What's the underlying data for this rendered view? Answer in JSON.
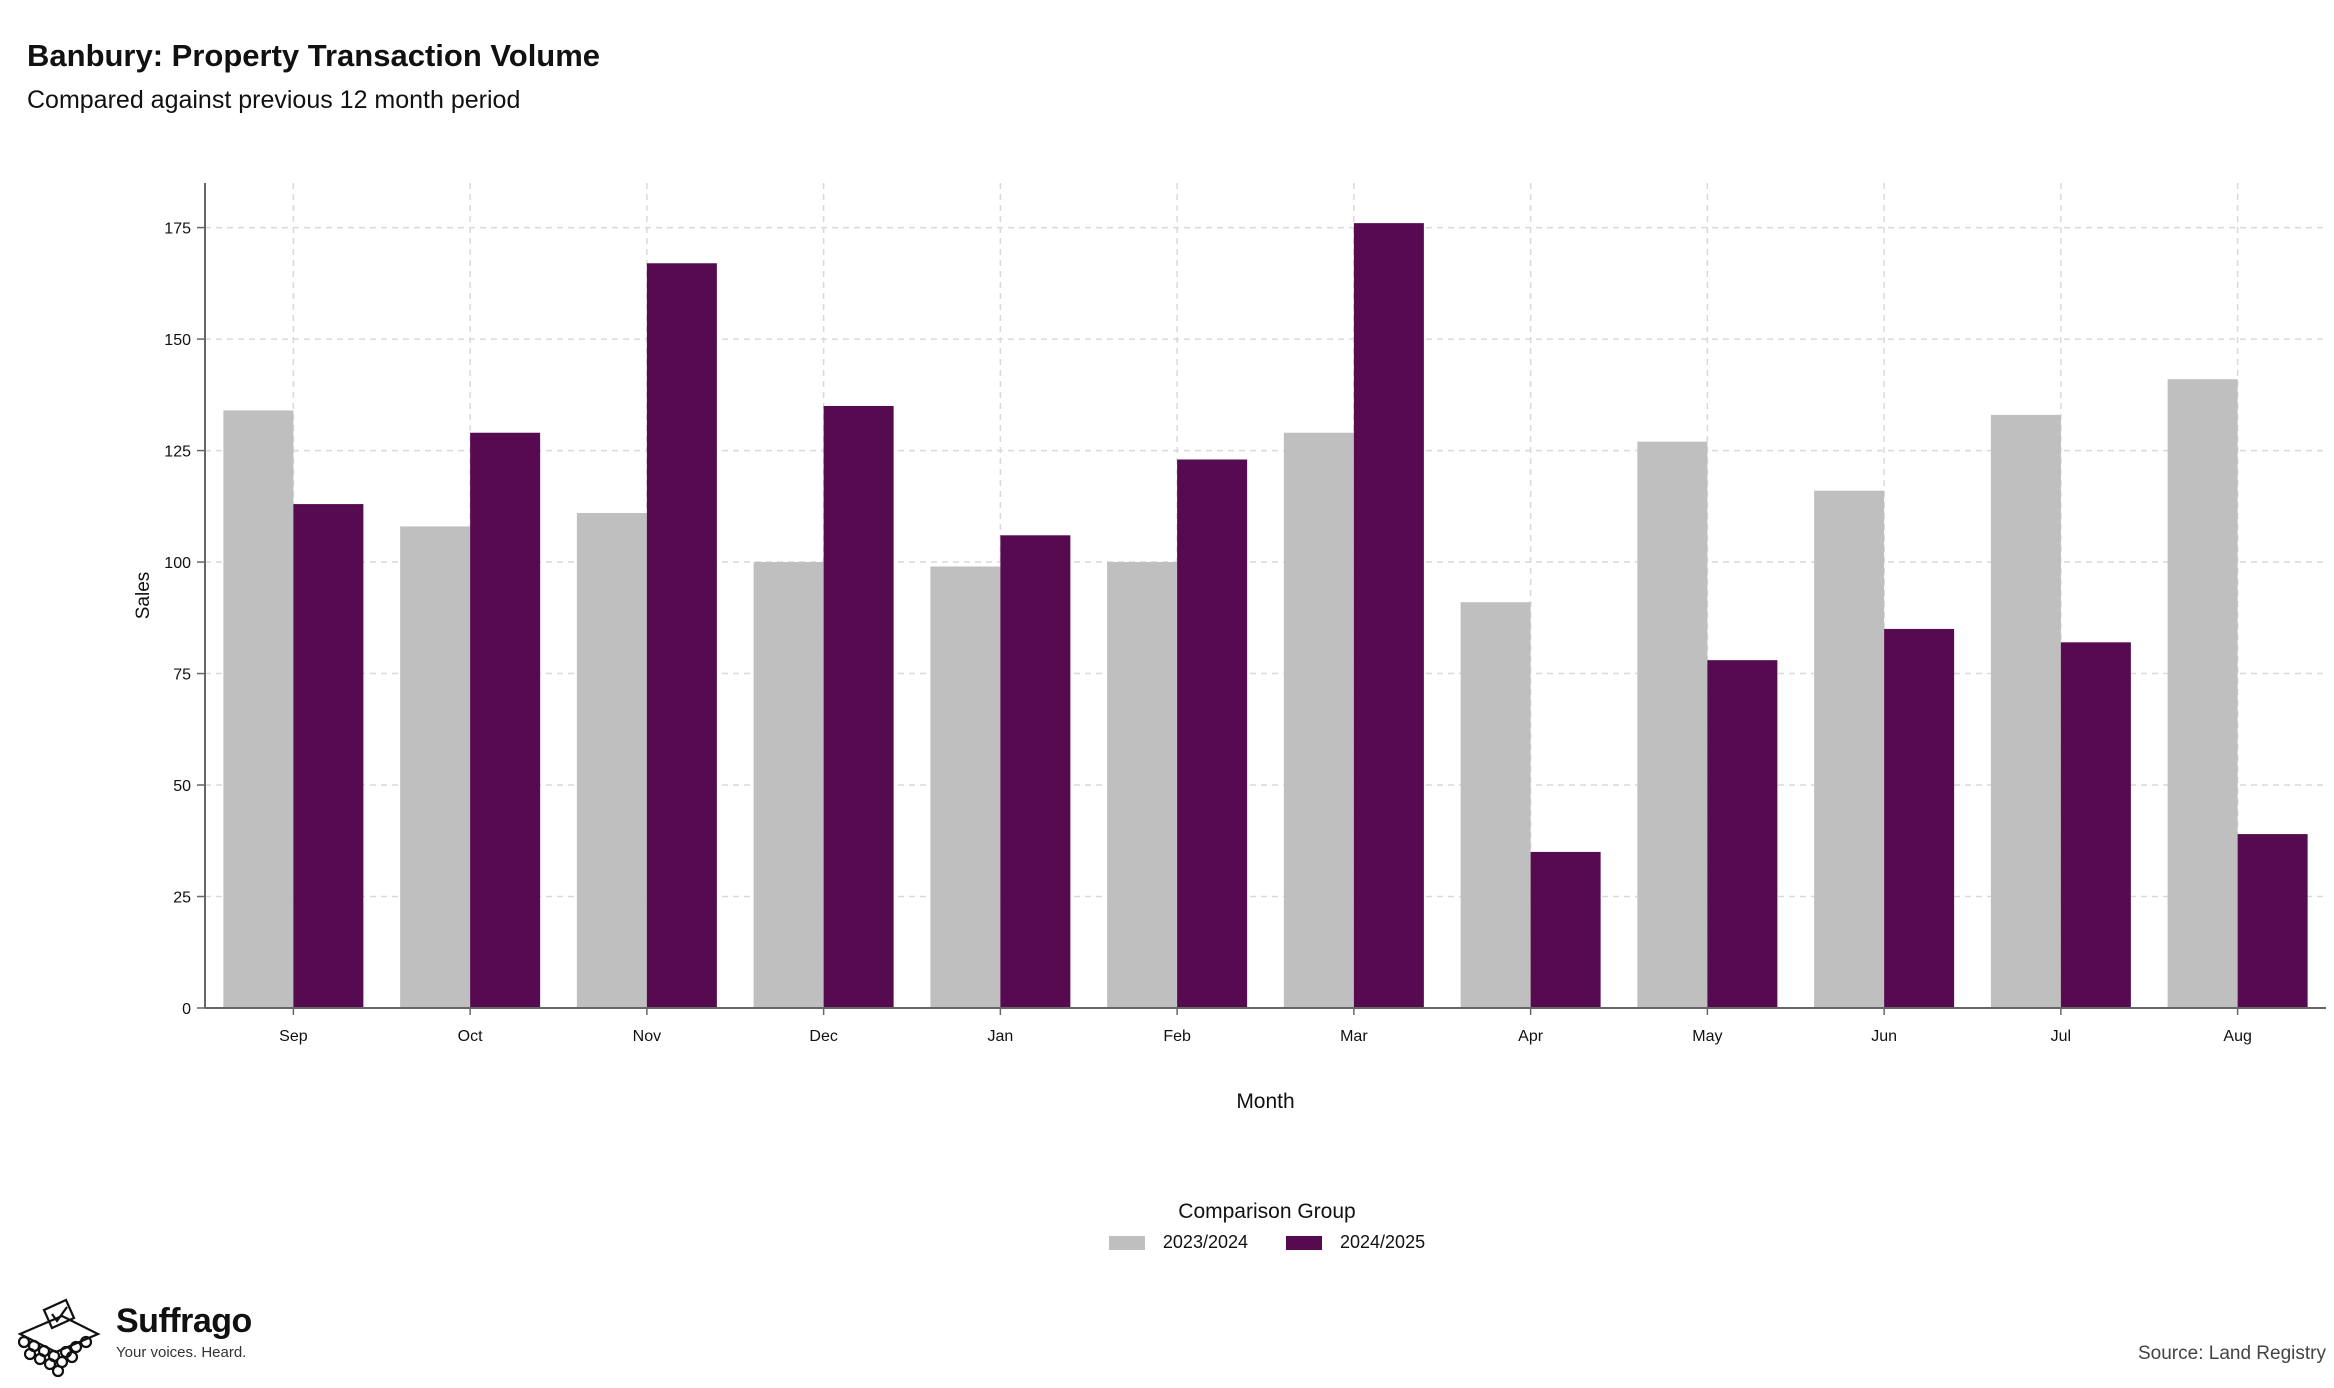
{
  "chart_data": {
    "type": "bar",
    "title": "Banbury: Property Transaction Volume",
    "subtitle": "Compared against previous 12 month period",
    "xlabel": "Month",
    "ylabel": "Sales",
    "ylim": [
      0,
      185
    ],
    "yticks": [
      0,
      25,
      50,
      75,
      100,
      125,
      150,
      175
    ],
    "grid": true,
    "legend_title": "Comparison Group",
    "legend_position": "bottom",
    "categories": [
      "Sep",
      "Oct",
      "Nov",
      "Dec",
      "Jan",
      "Feb",
      "Mar",
      "Apr",
      "May",
      "Jun",
      "Jul",
      "Aug"
    ],
    "series": [
      {
        "name": "2023/2024",
        "color": "#bfbfbf",
        "values": [
          134,
          108,
          111,
          100,
          99,
          100,
          129,
          91,
          127,
          116,
          133,
          141
        ]
      },
      {
        "name": "2024/2025",
        "color": "#560b51",
        "values": [
          113,
          129,
          167,
          135,
          106,
          123,
          176,
          35,
          78,
          85,
          82,
          39
        ]
      }
    ]
  },
  "brand": {
    "name": "Suffrago",
    "tagline": "Your voices. Heard.",
    "icon": "ballot-box-icon"
  },
  "source": "Source: Land Registry"
}
